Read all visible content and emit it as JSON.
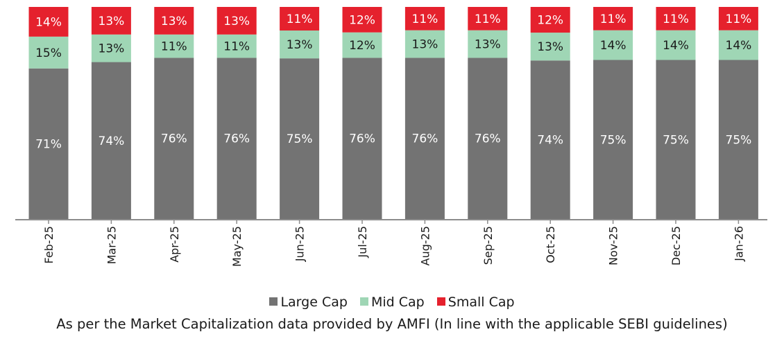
{
  "chart_data": {
    "type": "bar",
    "stacked": true,
    "normalized_percent": true,
    "categories": [
      "Feb-25",
      "Mar-25",
      "Apr-25",
      "May-25",
      "Jun-25",
      "Jul-25",
      "Aug-25",
      "Sep-25",
      "Oct-25",
      "Nov-25",
      "Dec-25",
      "Jan-26"
    ],
    "series": [
      {
        "name": "Large Cap",
        "color": "#737373",
        "values": [
          71,
          74,
          76,
          76,
          75,
          76,
          76,
          76,
          74,
          75,
          75,
          75
        ]
      },
      {
        "name": "Mid Cap",
        "color": "#9fd6b5",
        "values": [
          15,
          13,
          11,
          11,
          13,
          12,
          13,
          13,
          13,
          14,
          14,
          14
        ]
      },
      {
        "name": "Small Cap",
        "color": "#e5212d",
        "values": [
          14,
          13,
          13,
          13,
          11,
          12,
          11,
          11,
          12,
          11,
          11,
          11
        ]
      }
    ],
    "value_suffix": "%",
    "legend_position": "bottom",
    "title": "",
    "xlabel": "",
    "ylabel": ""
  },
  "footnote": "As per the Market Capitalization data provided by AMFI (In line with the applicable SEBI guidelines)"
}
